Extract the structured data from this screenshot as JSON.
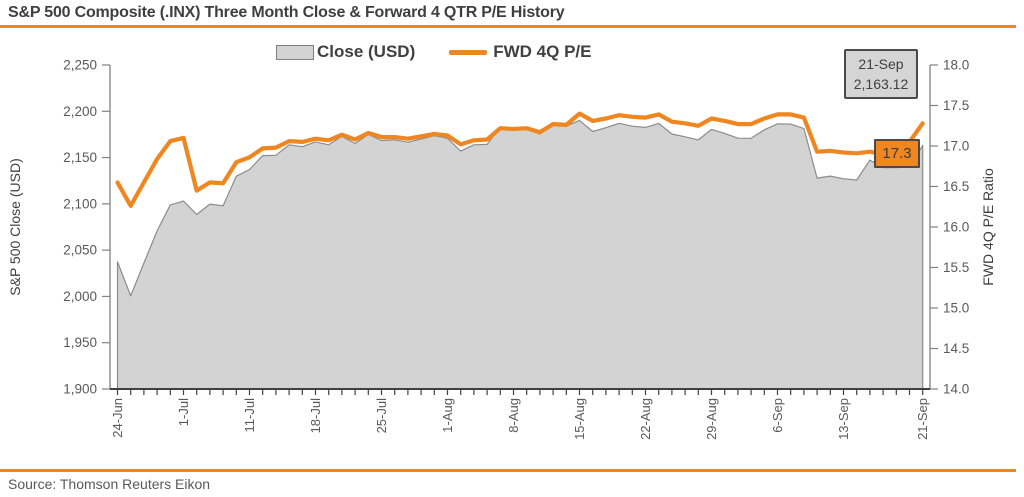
{
  "colors": {
    "accent_orange": "#f0861f",
    "area_fill": "#d3d3d3",
    "area_stroke": "#8c8c8c",
    "axis_gray": "#808080",
    "axis_dark": "#404040",
    "text_dark": "#3f3f3f",
    "tick_text": "#595959"
  },
  "chart_data": {
    "type": "area+line",
    "title": "S&P 500 Composite (.INX) Three Month Close & Forward 4 QTR P/E History",
    "source": "Source: Thomson Reuters Eikon",
    "legend_position": "top-center",
    "grid": false,
    "legend": [
      {
        "label": "Close (USD)",
        "swatch": "area",
        "color": "#d3d3d3"
      },
      {
        "label": "FWD 4Q P/E",
        "swatch": "line",
        "color": "#f0861f"
      }
    ],
    "dates": [
      "24-Jun",
      "27-Jun",
      "28-Jun",
      "29-Jun",
      "30-Jun",
      "1-Jul",
      "5-Jul",
      "6-Jul",
      "7-Jul",
      "8-Jul",
      "11-Jul",
      "12-Jul",
      "13-Jul",
      "14-Jul",
      "15-Jul",
      "18-Jul",
      "19-Jul",
      "20-Jul",
      "21-Jul",
      "22-Jul",
      "25-Jul",
      "26-Jul",
      "27-Jul",
      "28-Jul",
      "29-Jul",
      "1-Aug",
      "2-Aug",
      "3-Aug",
      "4-Aug",
      "5-Aug",
      "8-Aug",
      "9-Aug",
      "10-Aug",
      "11-Aug",
      "12-Aug",
      "15-Aug",
      "16-Aug",
      "17-Aug",
      "18-Aug",
      "19-Aug",
      "22-Aug",
      "23-Aug",
      "24-Aug",
      "25-Aug",
      "26-Aug",
      "29-Aug",
      "30-Aug",
      "31-Aug",
      "1-Sep",
      "2-Sep",
      "6-Sep",
      "7-Sep",
      "8-Sep",
      "9-Sep",
      "12-Sep",
      "13-Sep",
      "14-Sep",
      "15-Sep",
      "16-Sep",
      "19-Sep",
      "20-Sep",
      "21-Sep"
    ],
    "x_tick_labels": [
      "24-Jun",
      "1-Jul",
      "11-Jul",
      "18-Jul",
      "25-Jul",
      "1-Aug",
      "8-Aug",
      "15-Aug",
      "22-Aug",
      "29-Aug",
      "6-Sep",
      "13-Sep",
      "21-Sep"
    ],
    "x_tick_indices": [
      0,
      5,
      10,
      15,
      20,
      25,
      30,
      35,
      40,
      45,
      50,
      55,
      61
    ],
    "series": [
      {
        "name": "Close (USD)",
        "axis": "left",
        "type": "area",
        "values": [
          2037.3,
          2000.54,
          2036.09,
          2070.77,
          2098.86,
          2102.95,
          2088.55,
          2099.73,
          2097.9,
          2129.9,
          2137.16,
          2152.14,
          2152.43,
          2163.75,
          2161.74,
          2166.89,
          2163.78,
          2173.02,
          2165.17,
          2175.03,
          2168.48,
          2169.18,
          2166.58,
          2170.06,
          2173.6,
          2170.84,
          2157.03,
          2163.79,
          2164.25,
          2182.87,
          2180.89,
          2181.74,
          2175.49,
          2185.79,
          2184.05,
          2190.15,
          2178.15,
          2182.22,
          2187.02,
          2183.87,
          2182.64,
          2186.9,
          2175.44,
          2172.47,
          2169.04,
          2180.38,
          2176.12,
          2170.95,
          2170.86,
          2179.98,
          2186.48,
          2186.16,
          2181.3,
          2127.81,
          2130.0,
          2127.02,
          2125.77,
          2147.26,
          2139.16,
          2139.12,
          2139.76,
          2163.12
        ]
      },
      {
        "name": "FWD 4Q P/E",
        "axis": "right",
        "type": "line",
        "values": [
          16.55,
          16.26,
          16.55,
          16.84,
          17.06,
          17.1,
          16.45,
          16.55,
          16.54,
          16.8,
          16.86,
          16.97,
          16.98,
          17.06,
          17.05,
          17.09,
          17.07,
          17.14,
          17.08,
          17.16,
          17.11,
          17.11,
          17.09,
          17.12,
          17.15,
          17.13,
          17.02,
          17.07,
          17.08,
          17.22,
          17.21,
          17.22,
          17.17,
          17.27,
          17.26,
          17.4,
          17.31,
          17.34,
          17.38,
          17.36,
          17.35,
          17.39,
          17.3,
          17.28,
          17.25,
          17.34,
          17.31,
          17.27,
          17.27,
          17.34,
          17.39,
          17.39,
          17.35,
          16.93,
          16.94,
          16.92,
          16.91,
          16.93,
          16.9,
          16.9,
          17.05,
          17.28
        ]
      }
    ],
    "left_axis": {
      "label": "S&P 500 Close (USD)",
      "min": 1900,
      "max": 2250,
      "tick_values": [
        2250,
        2200,
        2150,
        2100,
        2050,
        2000,
        1950,
        1900
      ],
      "tick_labels": [
        "2,250",
        "2,200",
        "2,150",
        "2,100",
        "2,050",
        "2,000",
        "1,950",
        "1,900"
      ]
    },
    "right_axis": {
      "label": "FWD 4Q P/E Ratio",
      "min": 14.0,
      "max": 18.0,
      "tick_values": [
        18.0,
        17.5,
        17.0,
        16.5,
        16.0,
        15.5,
        15.0,
        14.5,
        14.0
      ],
      "tick_labels": [
        "18.0",
        "17.5",
        "17.0",
        "16.5",
        "16.0",
        "15.5",
        "15.0",
        "14.5",
        "14.0"
      ]
    },
    "annotations": {
      "price_box": {
        "line1": "21-Sep",
        "line2": "2,163.12"
      },
      "pe_box": {
        "label": "17.3"
      }
    }
  }
}
